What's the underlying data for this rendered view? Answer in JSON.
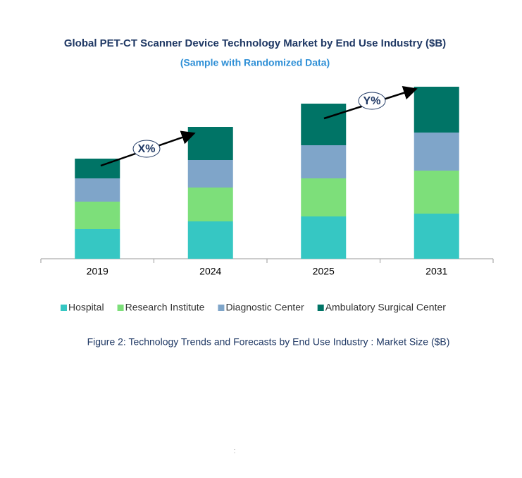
{
  "chart_data": {
    "type": "stacked_bar",
    "title": "Global PET-CT Scanner Device Technology Market by End Use Industry ($B)",
    "subtitle": "(Sample with Randomized Data)",
    "caption": "Figure 2: Technology  Trends  and Forecasts by End Use Industry  : Market Size ($B)",
    "annotations": [
      "X%",
      "Y%"
    ],
    "footer_mark": ":",
    "categories": [
      "2019",
      "2024",
      "2025",
      "2031"
    ],
    "series": [
      {
        "name": "Hospital",
        "color": "#36c7c3",
        "values": [
          4.2,
          5.3,
          6.0,
          6.4
        ]
      },
      {
        "name": "Research Institute",
        "color": "#7ddf7a",
        "values": [
          3.9,
          4.8,
          5.4,
          6.1
        ]
      },
      {
        "name": "Diagnostic Center",
        "color": "#7fa5c9",
        "values": [
          3.3,
          3.9,
          4.7,
          5.4
        ]
      },
      {
        "name": "Ambulatory Surgical Center",
        "color": "#007466",
        "values": [
          2.8,
          4.7,
          5.9,
          6.5
        ]
      }
    ]
  }
}
